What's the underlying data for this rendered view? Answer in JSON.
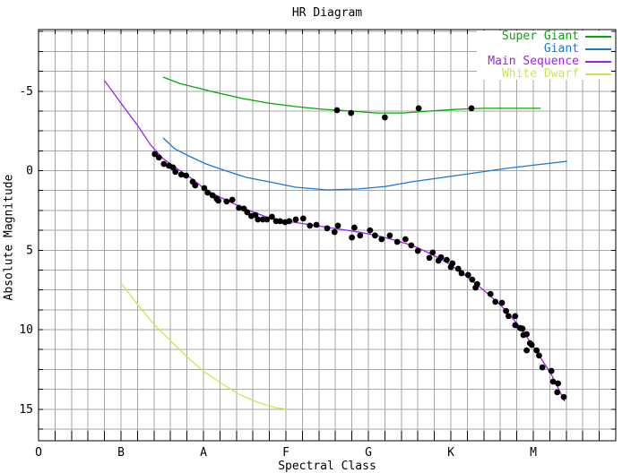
{
  "title": "HR Diagram",
  "colors": {
    "background": "#ffffff",
    "grid": "#a6a6a6",
    "axis": "#000000",
    "super_giant": "#00aa00",
    "giant": "#1878d8",
    "main_sequence": "#a020f0",
    "white_dwarf": "#c8e850",
    "star_dot": "#000000"
  },
  "legend": [
    {
      "label": "Super Giant",
      "color": "#00aa00"
    },
    {
      "label": "Giant",
      "color": "#1878d8"
    },
    {
      "label": "Main Sequence",
      "color": "#a020f0"
    },
    {
      "label": "White Dwarf",
      "color": "#c8e850"
    }
  ],
  "chart_data": {
    "type": "scatter",
    "title": "HR Diagram",
    "xlabel": "Spectral Class",
    "ylabel": "Absolute Magnitude",
    "x_axis": {
      "categories": [
        "O",
        "B",
        "A",
        "F",
        "G",
        "K",
        "M"
      ],
      "category_positions": [
        0,
        1,
        2,
        3,
        4,
        5,
        6
      ],
      "range": [
        0,
        7
      ],
      "minor_divisions_per_class": 5
    },
    "y_axis": {
      "ticks": [
        -5,
        0,
        5,
        10,
        15
      ],
      "range": [
        -8.9,
        17.0
      ],
      "minor_step": 1.25,
      "inverted": true,
      "grid": true
    },
    "legend_position": "top-right",
    "series": [
      {
        "name": "Super Giant",
        "type": "line",
        "color": "#00aa00",
        "points": [
          [
            1.51,
            -5.89
          ],
          [
            1.71,
            -5.49
          ],
          [
            1.92,
            -5.21
          ],
          [
            2.14,
            -4.93
          ],
          [
            2.47,
            -4.54
          ],
          [
            2.79,
            -4.25
          ],
          [
            3.12,
            -4.03
          ],
          [
            3.45,
            -3.86
          ],
          [
            3.77,
            -3.75
          ],
          [
            4.1,
            -3.63
          ],
          [
            4.42,
            -3.63
          ],
          [
            4.75,
            -3.75
          ],
          [
            5.08,
            -3.86
          ],
          [
            5.4,
            -3.92
          ],
          [
            5.73,
            -3.92
          ],
          [
            6.09,
            -3.92
          ]
        ]
      },
      {
        "name": "Giant",
        "type": "line",
        "color": "#1878d8",
        "points": [
          [
            1.51,
            -2.06
          ],
          [
            1.65,
            -1.38
          ],
          [
            1.82,
            -0.93
          ],
          [
            2.03,
            -0.42
          ],
          [
            2.25,
            -0.03
          ],
          [
            2.52,
            0.42
          ],
          [
            2.79,
            0.7
          ],
          [
            3.12,
            1.04
          ],
          [
            3.5,
            1.21
          ],
          [
            3.88,
            1.15
          ],
          [
            4.21,
            0.99
          ],
          [
            4.53,
            0.7
          ],
          [
            4.91,
            0.42
          ],
          [
            5.29,
            0.14
          ],
          [
            5.67,
            -0.14
          ],
          [
            6.05,
            -0.37
          ],
          [
            6.41,
            -0.59
          ]
        ]
      },
      {
        "name": "Main Sequence",
        "type": "line",
        "color": "#a020f0",
        "points": [
          [
            0.8,
            -5.66
          ],
          [
            1.0,
            -4.25
          ],
          [
            1.2,
            -2.85
          ],
          [
            1.36,
            -1.61
          ],
          [
            1.51,
            -0.76
          ],
          [
            1.71,
            -0.03
          ],
          [
            1.87,
            0.54
          ],
          [
            2.03,
            1.21
          ],
          [
            2.2,
            1.66
          ],
          [
            2.36,
            2.06
          ],
          [
            2.58,
            2.56
          ],
          [
            2.79,
            2.96
          ],
          [
            3.01,
            3.18
          ],
          [
            3.23,
            3.35
          ],
          [
            3.45,
            3.52
          ],
          [
            3.66,
            3.69
          ],
          [
            3.88,
            3.86
          ],
          [
            4.1,
            4.08
          ],
          [
            4.32,
            4.37
          ],
          [
            4.53,
            4.7
          ],
          [
            4.75,
            5.21
          ],
          [
            4.97,
            5.83
          ],
          [
            5.18,
            6.62
          ],
          [
            5.4,
            7.52
          ],
          [
            5.62,
            8.54
          ],
          [
            5.84,
            9.83
          ],
          [
            6.05,
            11.46
          ],
          [
            6.22,
            12.82
          ],
          [
            6.38,
            14.51
          ]
        ]
      },
      {
        "name": "White Dwarf",
        "type": "line",
        "color": "#c8e850",
        "points": [
          [
            1.01,
            7.13
          ],
          [
            1.22,
            8.54
          ],
          [
            1.41,
            9.72
          ],
          [
            1.62,
            10.79
          ],
          [
            1.82,
            11.8
          ],
          [
            2.01,
            12.65
          ],
          [
            2.22,
            13.38
          ],
          [
            2.43,
            14.06
          ],
          [
            2.65,
            14.56
          ],
          [
            2.87,
            14.9
          ],
          [
            3.01,
            15.01
          ]
        ]
      },
      {
        "name": "Stars",
        "type": "scatter",
        "color": "#000000",
        "marker_radius": 3.4,
        "points": [
          [
            1.41,
            -1.04
          ],
          [
            1.46,
            -0.82
          ],
          [
            1.52,
            -0.42
          ],
          [
            1.58,
            -0.31
          ],
          [
            1.63,
            -0.2
          ],
          [
            1.66,
            0.08
          ],
          [
            1.73,
            0.25
          ],
          [
            1.79,
            0.31
          ],
          [
            1.87,
            0.7
          ],
          [
            1.9,
            0.93
          ],
          [
            2.01,
            1.1
          ],
          [
            2.05,
            1.38
          ],
          [
            2.11,
            1.55
          ],
          [
            2.16,
            1.77
          ],
          [
            2.18,
            1.89
          ],
          [
            2.28,
            1.94
          ],
          [
            2.35,
            1.83
          ],
          [
            2.43,
            2.34
          ],
          [
            2.49,
            2.39
          ],
          [
            2.53,
            2.62
          ],
          [
            2.58,
            2.85
          ],
          [
            2.63,
            2.79
          ],
          [
            2.66,
            3.07
          ],
          [
            2.72,
            3.07
          ],
          [
            2.77,
            3.07
          ],
          [
            2.83,
            2.9
          ],
          [
            2.88,
            3.18
          ],
          [
            2.93,
            3.18
          ],
          [
            2.99,
            3.24
          ],
          [
            3.04,
            3.18
          ],
          [
            3.12,
            3.07
          ],
          [
            3.21,
            3.01
          ],
          [
            3.29,
            3.46
          ],
          [
            3.37,
            3.41
          ],
          [
            3.5,
            3.63
          ],
          [
            3.59,
            3.86
          ],
          [
            3.63,
            3.46
          ],
          [
            3.8,
            4.2
          ],
          [
            3.83,
            3.58
          ],
          [
            3.9,
            4.08
          ],
          [
            4.02,
            3.75
          ],
          [
            4.08,
            4.08
          ],
          [
            4.16,
            4.31
          ],
          [
            4.26,
            4.08
          ],
          [
            4.35,
            4.48
          ],
          [
            4.45,
            4.31
          ],
          [
            4.52,
            4.7
          ],
          [
            4.6,
            5.04
          ],
          [
            4.74,
            5.49
          ],
          [
            4.78,
            5.15
          ],
          [
            4.85,
            5.66
          ],
          [
            4.88,
            5.44
          ],
          [
            4.95,
            5.61
          ],
          [
            5.02,
            5.83
          ],
          [
            5.0,
            6.06
          ],
          [
            5.09,
            6.17
          ],
          [
            5.13,
            6.45
          ],
          [
            5.21,
            6.56
          ],
          [
            5.26,
            6.85
          ],
          [
            5.32,
            7.13
          ],
          [
            5.3,
            7.35
          ],
          [
            5.48,
            7.75
          ],
          [
            5.54,
            8.25
          ],
          [
            5.62,
            8.31
          ],
          [
            5.67,
            8.82
          ],
          [
            5.7,
            9.15
          ],
          [
            5.78,
            9.15
          ],
          [
            5.78,
            9.72
          ],
          [
            5.84,
            9.9
          ],
          [
            5.87,
            9.94
          ],
          [
            5.88,
            10.34
          ],
          [
            5.92,
            10.28
          ],
          [
            5.96,
            10.85
          ],
          [
            5.98,
            10.96
          ],
          [
            5.92,
            11.3
          ],
          [
            6.04,
            11.3
          ],
          [
            6.07,
            11.63
          ],
          [
            6.11,
            12.37
          ],
          [
            6.22,
            12.59
          ],
          [
            6.24,
            13.27
          ],
          [
            6.3,
            13.38
          ],
          [
            6.29,
            13.94
          ],
          [
            6.37,
            14.23
          ],
          [
            3.62,
            -3.8
          ],
          [
            3.79,
            -3.63
          ],
          [
            4.2,
            -3.35
          ],
          [
            4.61,
            -3.92
          ],
          [
            5.25,
            -3.92
          ]
        ]
      }
    ]
  },
  "labels": {
    "xlabel": "Spectral Class",
    "ylabel": "Absolute Magnitude"
  }
}
